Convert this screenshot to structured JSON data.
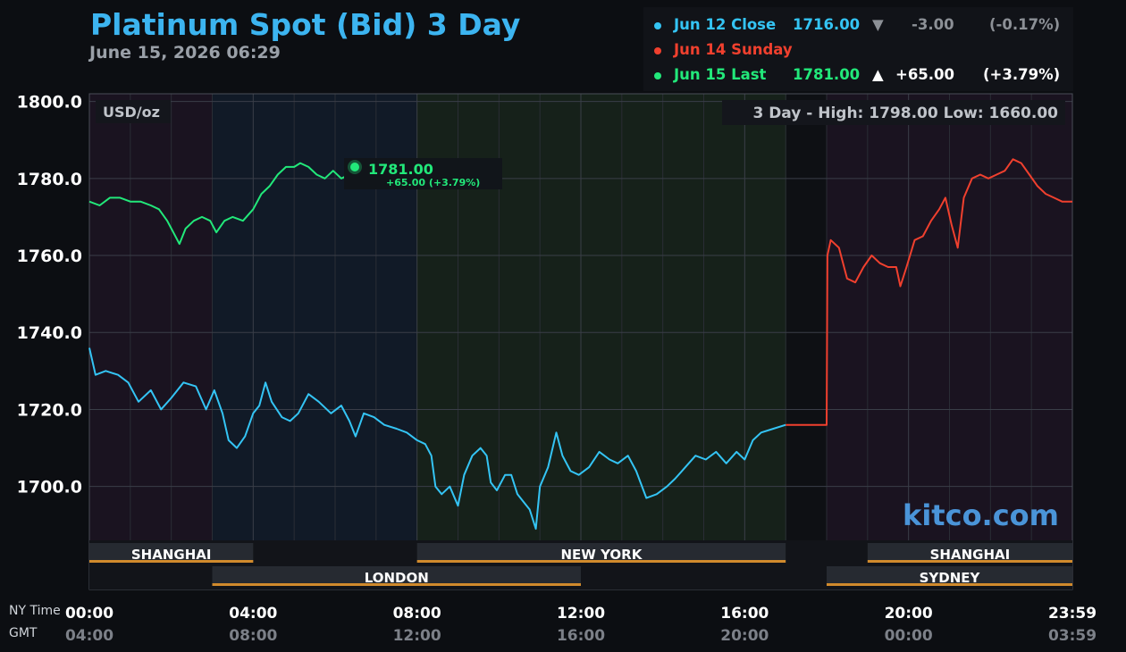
{
  "header": {
    "title": "Platinum Spot (Bid) 3 Day",
    "datetime": "June 15, 2026 06:29"
  },
  "legend": [
    {
      "label": "Jun 12 Close",
      "value": "1716.00",
      "arrow": "▼",
      "change": "-3.00",
      "pct": "(-0.17%)",
      "color": "#34c4f4",
      "change_color": "#8c9096"
    },
    {
      "label": "Jun 14 Sunday",
      "value": "",
      "arrow": "",
      "change": "",
      "pct": "",
      "color": "#f0402e",
      "change_color": "#ffffff"
    },
    {
      "label": "Jun 15 Last",
      "value": "1781.00",
      "arrow": "▲",
      "change": "+65.00",
      "pct": "(+3.79%)",
      "color": "#22e87a",
      "change_color": "#ffffff"
    }
  ],
  "plot": {
    "unit_label": "USD/oz",
    "hilo_label": "3 Day - High: 1798.00  Low: 1660.00",
    "watermark": "kitco.com",
    "last_marker": {
      "price": "1781.00",
      "change": "+65.00 (+3.79%)"
    }
  },
  "sessions": [
    {
      "name": "SHANGHAI",
      "start": 0,
      "end": 4,
      "row": 0
    },
    {
      "name": "NEW YORK",
      "start": 8,
      "end": 17,
      "row": 0
    },
    {
      "name": "SHANGHAI",
      "start": 19,
      "end": 24,
      "row": 0
    },
    {
      "name": "LONDON",
      "start": 3,
      "end": 12,
      "row": 1
    },
    {
      "name": "SYDNEY",
      "start": 18,
      "end": 24,
      "row": 1
    }
  ],
  "axis_labels": {
    "ny": "NY Time",
    "gmt": "GMT"
  },
  "chart_data": {
    "type": "line",
    "title": "Platinum Spot (Bid) 3 Day",
    "ylabel": "USD/oz",
    "ylim": [
      1686,
      1802
    ],
    "xlim_hours": [
      0,
      24
    ],
    "y_ticks": [
      1700.0,
      1720.0,
      1740.0,
      1760.0,
      1780.0,
      1800.0
    ],
    "y_tick_labels": [
      "1700.0",
      "1720.0",
      "1740.0",
      "1760.0",
      "1780.0",
      "1800.0"
    ],
    "x_ticks": [
      0,
      4,
      8,
      12,
      16,
      20,
      24
    ],
    "x_tick_labels_ny": [
      "00:00",
      "04:00",
      "08:00",
      "12:00",
      "16:00",
      "20:00",
      "23:59"
    ],
    "x_tick_labels_gmt": [
      "04:00",
      "08:00",
      "12:00",
      "16:00",
      "20:00",
      "00:00",
      "03:59"
    ],
    "grid": true,
    "series": [
      {
        "name": "Jun 12 Close",
        "color": "#34c4f4",
        "points": [
          [
            0,
            1736
          ],
          [
            0.15,
            1729
          ],
          [
            0.4,
            1730
          ],
          [
            0.7,
            1729
          ],
          [
            0.95,
            1727
          ],
          [
            1.2,
            1722
          ],
          [
            1.5,
            1725
          ],
          [
            1.75,
            1720
          ],
          [
            2.0,
            1723
          ],
          [
            2.3,
            1727
          ],
          [
            2.6,
            1726
          ],
          [
            2.85,
            1720
          ],
          [
            3.05,
            1725
          ],
          [
            3.25,
            1719
          ],
          [
            3.4,
            1712
          ],
          [
            3.6,
            1710
          ],
          [
            3.8,
            1713
          ],
          [
            4.0,
            1719
          ],
          [
            4.15,
            1721
          ],
          [
            4.3,
            1727
          ],
          [
            4.45,
            1722
          ],
          [
            4.7,
            1718
          ],
          [
            4.9,
            1717
          ],
          [
            5.1,
            1719
          ],
          [
            5.35,
            1724
          ],
          [
            5.6,
            1722
          ],
          [
            5.9,
            1719
          ],
          [
            6.15,
            1721
          ],
          [
            6.35,
            1717
          ],
          [
            6.5,
            1713
          ],
          [
            6.7,
            1719
          ],
          [
            6.95,
            1718
          ],
          [
            7.2,
            1716
          ],
          [
            7.5,
            1715
          ],
          [
            7.75,
            1714
          ],
          [
            8.0,
            1712
          ],
          [
            8.2,
            1711
          ],
          [
            8.35,
            1708
          ],
          [
            8.45,
            1700
          ],
          [
            8.6,
            1698
          ],
          [
            8.8,
            1700
          ],
          [
            9.0,
            1695
          ],
          [
            9.15,
            1703
          ],
          [
            9.35,
            1708
          ],
          [
            9.55,
            1710
          ],
          [
            9.7,
            1708
          ],
          [
            9.8,
            1701
          ],
          [
            9.95,
            1699
          ],
          [
            10.15,
            1703
          ],
          [
            10.3,
            1703
          ],
          [
            10.45,
            1698
          ],
          [
            10.6,
            1696
          ],
          [
            10.75,
            1694
          ],
          [
            10.9,
            1689
          ],
          [
            11.0,
            1700
          ],
          [
            11.2,
            1705
          ],
          [
            11.4,
            1714
          ],
          [
            11.55,
            1708
          ],
          [
            11.75,
            1704
          ],
          [
            11.95,
            1703
          ],
          [
            12.2,
            1705
          ],
          [
            12.45,
            1709
          ],
          [
            12.7,
            1707
          ],
          [
            12.9,
            1706
          ],
          [
            13.15,
            1708
          ],
          [
            13.35,
            1704
          ],
          [
            13.6,
            1697
          ],
          [
            13.85,
            1698
          ],
          [
            14.1,
            1700
          ],
          [
            14.3,
            1702
          ],
          [
            14.55,
            1705
          ],
          [
            14.8,
            1708
          ],
          [
            15.05,
            1707
          ],
          [
            15.3,
            1709
          ],
          [
            15.55,
            1706
          ],
          [
            15.8,
            1709
          ],
          [
            16.0,
            1707
          ],
          [
            16.2,
            1712
          ],
          [
            16.4,
            1714
          ],
          [
            16.7,
            1715
          ],
          [
            17.0,
            1716
          ]
        ]
      },
      {
        "name": "Jun 14 Sunday",
        "color": "#f0402e",
        "points": [
          [
            17.0,
            1716
          ],
          [
            18.0,
            1716
          ],
          [
            18.02,
            1760
          ],
          [
            18.1,
            1764
          ],
          [
            18.3,
            1762
          ],
          [
            18.5,
            1754
          ],
          [
            18.7,
            1753
          ],
          [
            18.9,
            1757
          ],
          [
            19.1,
            1760
          ],
          [
            19.3,
            1758
          ],
          [
            19.5,
            1757
          ],
          [
            19.7,
            1757
          ],
          [
            19.8,
            1752
          ],
          [
            19.95,
            1757
          ],
          [
            20.15,
            1764
          ],
          [
            20.35,
            1765
          ],
          [
            20.55,
            1769
          ],
          [
            20.75,
            1772
          ],
          [
            20.9,
            1775
          ],
          [
            21.05,
            1768
          ],
          [
            21.2,
            1762
          ],
          [
            21.35,
            1775
          ],
          [
            21.55,
            1780
          ],
          [
            21.75,
            1781
          ],
          [
            21.95,
            1780
          ],
          [
            22.15,
            1781
          ],
          [
            22.35,
            1782
          ],
          [
            22.55,
            1785
          ],
          [
            22.75,
            1784
          ],
          [
            22.95,
            1781
          ],
          [
            23.15,
            1778
          ],
          [
            23.35,
            1776
          ],
          [
            23.55,
            1775
          ],
          [
            23.75,
            1774
          ],
          [
            24.0,
            1774
          ]
        ]
      },
      {
        "name": "Jun 15 Last",
        "color": "#22e87a",
        "points": [
          [
            0,
            1774
          ],
          [
            0.25,
            1773
          ],
          [
            0.5,
            1775
          ],
          [
            0.75,
            1775
          ],
          [
            1.0,
            1774
          ],
          [
            1.25,
            1774
          ],
          [
            1.5,
            1773
          ],
          [
            1.7,
            1772
          ],
          [
            1.9,
            1769
          ],
          [
            2.05,
            1766
          ],
          [
            2.2,
            1763
          ],
          [
            2.35,
            1767
          ],
          [
            2.55,
            1769
          ],
          [
            2.75,
            1770
          ],
          [
            2.95,
            1769
          ],
          [
            3.1,
            1766
          ],
          [
            3.3,
            1769
          ],
          [
            3.5,
            1770
          ],
          [
            3.75,
            1769
          ],
          [
            4.0,
            1772
          ],
          [
            4.2,
            1776
          ],
          [
            4.4,
            1778
          ],
          [
            4.6,
            1781
          ],
          [
            4.8,
            1783
          ],
          [
            5.0,
            1783
          ],
          [
            5.15,
            1784
          ],
          [
            5.35,
            1783
          ],
          [
            5.55,
            1781
          ],
          [
            5.75,
            1780
          ],
          [
            5.95,
            1782
          ],
          [
            6.15,
            1780
          ],
          [
            6.35,
            1781
          ],
          [
            6.5,
            1781
          ]
        ]
      }
    ]
  }
}
